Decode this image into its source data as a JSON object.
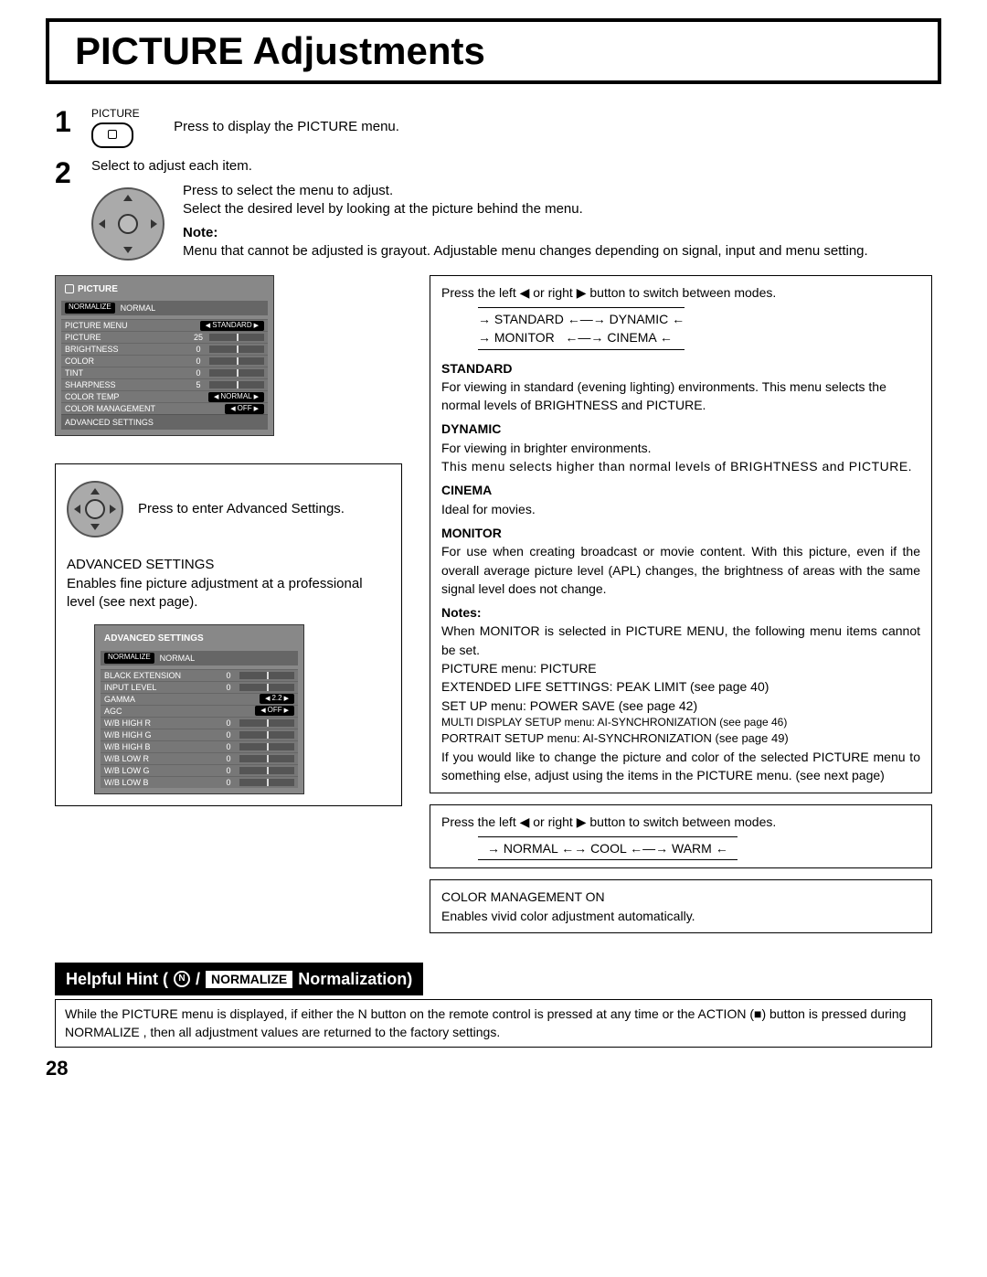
{
  "title": "PICTURE Adjustments",
  "page_number": "28",
  "step1": {
    "button_label": "PICTURE",
    "text": "Press to display the PICTURE menu."
  },
  "step2": {
    "intro": "Select to adjust each item.",
    "line_a": "Press to select the menu to adjust.",
    "line_b": "Select the desired level by looking at the picture behind the menu.",
    "note_label": "Note:",
    "note": "Menu that cannot be adjusted is grayout. Adjustable menu changes depending on signal, input and menu setting."
  },
  "osd_picture": {
    "title": "PICTURE",
    "normalize_btn": "NORMALIZE",
    "normalize_lbl": "NORMAL",
    "rows": [
      {
        "label": "PICTURE MENU",
        "select": "STANDARD"
      },
      {
        "label": "PICTURE",
        "value": "25",
        "slider": true
      },
      {
        "label": "BRIGHTNESS",
        "value": "0",
        "slider": true
      },
      {
        "label": "COLOR",
        "value": "0",
        "slider": true
      },
      {
        "label": "TINT",
        "value": "0",
        "slider": true
      },
      {
        "label": "SHARPNESS",
        "value": "5",
        "slider": true
      },
      {
        "label": "COLOR TEMP",
        "select": "NORMAL"
      },
      {
        "label": "COLOR MANAGEMENT",
        "select": "OFF"
      }
    ],
    "advanced": "ADVANCED SETTINGS"
  },
  "advanced_block": {
    "press_text": "Press to enter Advanced Settings.",
    "heading": "ADVANCED SETTINGS",
    "desc": "Enables fine picture adjustment at a professional level (see next page)."
  },
  "osd_advanced": {
    "title": "ADVANCED SETTINGS",
    "normalize_btn": "NORMALIZE",
    "normalize_lbl": "NORMAL",
    "rows": [
      {
        "label": "BLACK EXTENSION",
        "value": "0",
        "slider": true
      },
      {
        "label": "INPUT LEVEL",
        "value": "0",
        "slider": true
      },
      {
        "label": "GAMMA",
        "select": "2.2"
      },
      {
        "label": "AGC",
        "select": "OFF"
      },
      {
        "label": "W/B HIGH R",
        "value": "0",
        "slider": true
      },
      {
        "label": "W/B HIGH G",
        "value": "0",
        "slider": true
      },
      {
        "label": "W/B HIGH B",
        "value": "0",
        "slider": true
      },
      {
        "label": "W/B LOW R",
        "value": "0",
        "slider": true
      },
      {
        "label": "W/B LOW G",
        "value": "0",
        "slider": true
      },
      {
        "label": "W/B LOW B",
        "value": "0",
        "slider": true
      }
    ]
  },
  "right": {
    "mode_switch_text": "Press the left ◀ or right ▶ button to switch between modes.",
    "modes": {
      "standard": "STANDARD",
      "dynamic": "DYNAMIC",
      "monitor": "MONITOR",
      "cinema": "CINEMA"
    },
    "standard_h": "STANDARD",
    "standard_t": "For viewing in standard (evening lighting) environments. This menu selects the normal levels of BRIGHTNESS and PICTURE.",
    "dynamic_h": "DYNAMIC",
    "dynamic_t1": "For viewing in brighter environments.",
    "dynamic_t2": "This menu selects higher than normal levels of BRIGHTNESS and PICTURE.",
    "cinema_h": "CINEMA",
    "cinema_t": "Ideal for movies.",
    "monitor_h": "MONITOR",
    "monitor_t": "For use when creating broadcast or movie content. With this picture, even if the overall average picture level (APL) changes, the brightness of areas with the same signal level does not change.",
    "notes_h": "Notes:",
    "notes_1": "When  MONITOR  is  selected  in  PICTURE  MENU,  the following menu items cannot be set.",
    "notes_2": "PICTURE menu: PICTURE",
    "notes_3": "EXTENDED LIFE SETTINGS: PEAK LIMIT (see page 40)",
    "notes_4": "SET UP menu: POWER SAVE (see page 42)",
    "notes_5": "MULTI DISPLAY SETUP menu:  AI-SYNCHRONIZATION (see page 46)",
    "notes_6": "PORTRAIT SETUP menu: AI-SYNCHRONIZATION (see page 49)",
    "notes_7": "If you would like to change the picture and color of the selected PICTURE menu to something else, adjust using the items in the PICTURE menu. (see next page)",
    "temp_switch": "Press the left ◀ or right ▶ button to switch between modes.",
    "temps": {
      "normal": "NORMAL",
      "cool": "COOL",
      "warm": "WARM"
    },
    "cm_h": "COLOR MANAGEMENT ON",
    "cm_t": "Enables vivid color adjustment automatically."
  },
  "hint": {
    "prefix": "Helpful Hint (",
    "n": "N",
    "slash": " / ",
    "normalize": "NORMALIZE",
    "suffix": " Normalization)",
    "body": "While the  PICTURE  menu is displayed, if either the N button on the remote control is pressed at any time or the ACTION (■) button is pressed during  NORMALIZE , then all adjustment values are returned to the factory settings."
  }
}
